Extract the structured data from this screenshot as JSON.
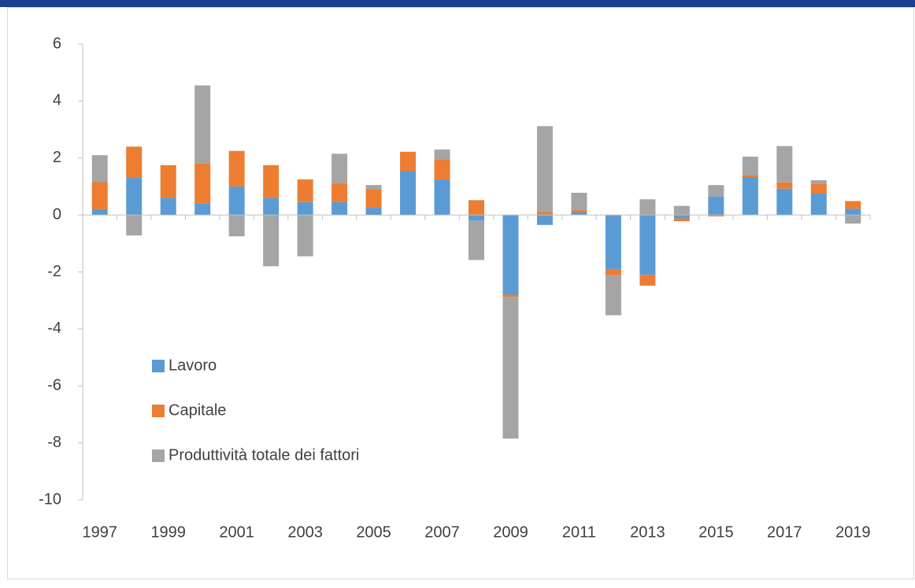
{
  "chart_data": {
    "type": "bar",
    "stacked": true,
    "categories": [
      "1997",
      null,
      "1999",
      null,
      "2001",
      null,
      "2003",
      null,
      "2005",
      null,
      "2007",
      null,
      "2009",
      null,
      "2011",
      null,
      "2013",
      null,
      "2015",
      null,
      "2017",
      null,
      "2019"
    ],
    "series": [
      {
        "name": "Lavoro",
        "color": "#5b9bd5",
        "values": [
          0.2,
          1.3,
          0.6,
          0.4,
          1.0,
          0.6,
          0.45,
          0.45,
          0.25,
          1.55,
          1.25,
          -0.2,
          -2.8,
          -0.35,
          0.1,
          -1.9,
          -2.1,
          -0.12,
          0.65,
          1.33,
          0.92,
          0.75,
          0.22
        ]
      },
      {
        "name": "Capitale",
        "color": "#ed7d31",
        "values": [
          0.95,
          1.1,
          1.15,
          1.4,
          1.25,
          1.15,
          0.8,
          0.67,
          0.65,
          0.67,
          0.7,
          0.52,
          -0.08,
          0.1,
          0.08,
          -0.22,
          -0.38,
          -0.1,
          -0.05,
          0.07,
          0.22,
          0.35,
          0.27
        ]
      },
      {
        "name": "Produttività totale dei fattori",
        "color": "#a5a5a5",
        "values": [
          0.95,
          -0.72,
          0.0,
          2.75,
          -0.75,
          -1.8,
          -1.45,
          1.03,
          0.15,
          0.0,
          0.35,
          -1.38,
          -4.97,
          3.02,
          0.6,
          -1.4,
          0.55,
          0.32,
          0.4,
          0.65,
          1.28,
          0.12,
          -0.3
        ]
      }
    ],
    "ylim": [
      -10,
      6
    ],
    "yticks": [
      -10,
      -8,
      -6,
      -4,
      -2,
      0,
      2,
      4,
      6
    ],
    "legend": "left",
    "grid": false
  }
}
